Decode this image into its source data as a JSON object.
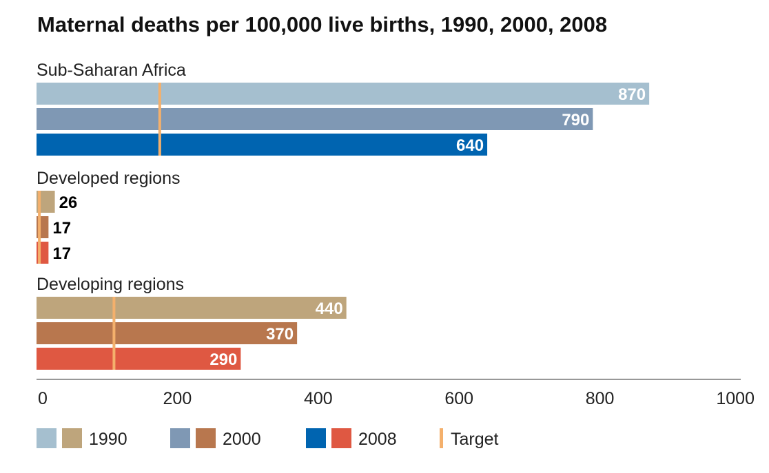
{
  "chart_data": {
    "type": "bar",
    "orientation": "horizontal",
    "title": "Maternal deaths per 100,000 live births, 1990, 2000, 2008",
    "xlim": [
      0,
      1000
    ],
    "xticks": [
      "0",
      "200",
      "400",
      "600",
      "800",
      "1000"
    ],
    "grid": false,
    "legend_position": "bottom",
    "series_names": [
      "1990",
      "2000",
      "2008"
    ],
    "groups": [
      {
        "name": "Sub-Saharan Africa",
        "values": [
          870,
          790,
          640
        ],
        "labels": [
          "870",
          "790",
          "640"
        ],
        "colors": [
          "#a5bfcf",
          "#7f98b4",
          "#0064b0"
        ],
        "target": 175,
        "label_inside": true
      },
      {
        "name": "Developed regions",
        "values": [
          26,
          17,
          17
        ],
        "labels": [
          "26",
          "17",
          "17"
        ],
        "colors": [
          "#bea57c",
          "#b8774e",
          "#df5842"
        ],
        "target": 4,
        "label_inside": false
      },
      {
        "name": "Developing regions",
        "values": [
          440,
          370,
          290
        ],
        "labels": [
          "440",
          "370",
          "290"
        ],
        "colors": [
          "#bea57c",
          "#b8774e",
          "#df5842"
        ],
        "target": 110,
        "label_inside": true
      }
    ],
    "legend": [
      {
        "label": "1990",
        "colors": [
          "#a5bfcf",
          "#bea57c"
        ]
      },
      {
        "label": "2000",
        "colors": [
          "#7f98b4",
          "#b8774e"
        ]
      },
      {
        "label": "2008",
        "colors": [
          "#0064b0",
          "#df5842"
        ]
      },
      {
        "label": "Target",
        "colors": [
          "#f4b06c"
        ],
        "marker": "line"
      }
    ],
    "target_color": "#f4b06c",
    "axis_color": "#777777"
  }
}
